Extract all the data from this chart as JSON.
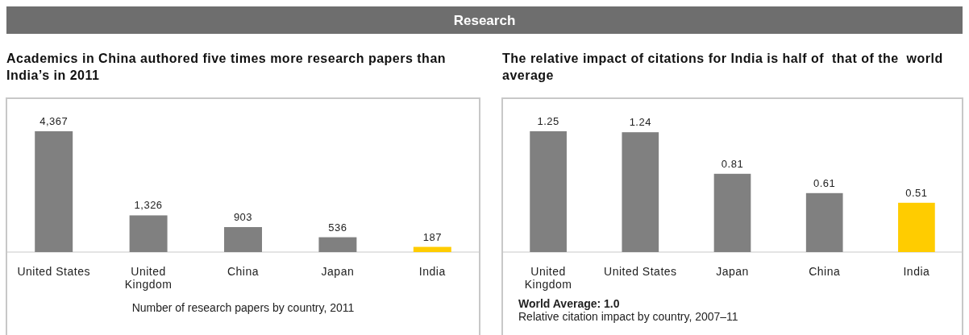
{
  "chart_data": [
    {
      "type": "bar",
      "title": "Academics in China authored five times more research papers than India’s in 2011",
      "annotations": [
        "Research",
        "Number of research papers by country, 2011"
      ],
      "categories": [
        "United States",
        "United Kingdom",
        "China",
        "Japan",
        "India"
      ],
      "values": [
        4367,
        1326,
        903,
        536,
        187
      ],
      "value_labels": [
        "4,367",
        "1,326",
        "903",
        "536",
        "187"
      ],
      "colors": [
        "#808080",
        "#808080",
        "#808080",
        "#808080",
        "#ffcc00"
      ]
    },
    {
      "type": "bar",
      "title": "The relative impact of citations for India is half of  that of the  world average",
      "annotations": [
        "World Average: 1.0",
        "Relative citation impact by country, 2007–11"
      ],
      "categories": [
        "United Kingdom",
        "United States",
        "Japan",
        "China",
        "India"
      ],
      "values": [
        1.25,
        1.24,
        0.81,
        0.61,
        0.51
      ],
      "colors": [
        "#808080",
        "#808080",
        "#808080",
        "#808080",
        "#ffcc00"
      ],
      "data_labels": true
    }
  ]
}
